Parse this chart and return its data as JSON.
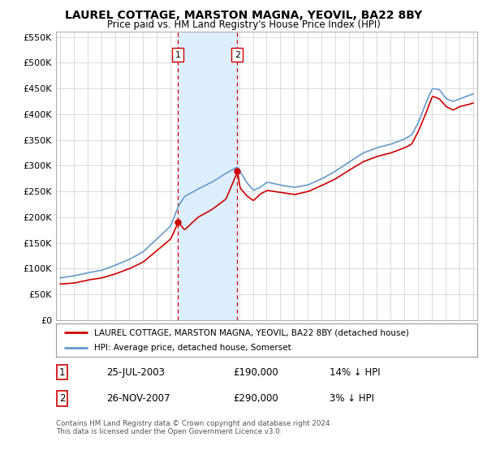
{
  "title": "LAUREL COTTAGE, MARSTON MAGNA, YEOVIL, BA22 8BY",
  "subtitle": "Price paid vs. HM Land Registry's House Price Index (HPI)",
  "legend_label_red": "LAUREL COTTAGE, MARSTON MAGNA, YEOVIL, BA22 8BY (detached house)",
  "legend_label_blue": "HPI: Average price, detached house, Somerset",
  "footnote": "Contains HM Land Registry data © Crown copyright and database right 2024.\nThis data is licensed under the Open Government Licence v3.0.",
  "transaction1_date": "25-JUL-2003",
  "transaction1_price": "£190,000",
  "transaction1_hpi": "14% ↓ HPI",
  "transaction1_year": 2003.54,
  "transaction1_value": 190000,
  "transaction2_date": "26-NOV-2007",
  "transaction2_price": "£290,000",
  "transaction2_hpi": "3% ↓ HPI",
  "transaction2_year": 2007.87,
  "transaction2_value": 290000,
  "color_red": "#cc0000",
  "color_blue": "#6699cc",
  "color_highlight": "#ddeeff",
  "color_vline": "#cc0000",
  "ylim": [
    0,
    560000
  ],
  "yticks": [
    0,
    50000,
    100000,
    150000,
    200000,
    250000,
    300000,
    350000,
    400000,
    450000,
    500000,
    550000
  ],
  "ytick_labels": [
    "£0",
    "£50K",
    "£100K",
    "£150K",
    "£200K",
    "£250K",
    "£300K",
    "£350K",
    "£400K",
    "£450K",
    "£500K",
    "£550K"
  ],
  "xlim_left": 1994.7,
  "xlim_right": 2025.3
}
